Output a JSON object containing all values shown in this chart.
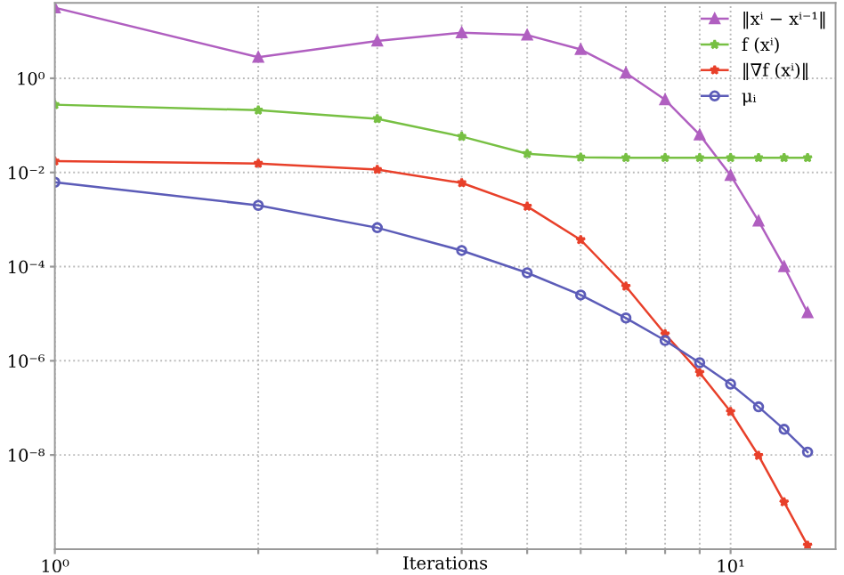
{
  "chart_data": {
    "type": "line",
    "xlabel": "Iterations",
    "log": "xy",
    "grid": true,
    "legend": "top right",
    "line_style": "solid",
    "x": [
      1,
      2,
      3,
      4,
      5,
      6,
      7,
      8,
      9,
      10,
      11,
      12,
      13
    ],
    "xlim": [
      1,
      14.3
    ],
    "ylim": [
      1e-10,
      40
    ],
    "xticks": [
      {
        "value": 1,
        "label": "10⁰"
      },
      {
        "value": 2,
        "label": null
      },
      {
        "value": 3,
        "label": null
      },
      {
        "value": 4,
        "label": null
      },
      {
        "value": 5,
        "label": null
      },
      {
        "value": 6,
        "label": null
      },
      {
        "value": 7,
        "label": null
      },
      {
        "value": 8,
        "label": null
      },
      {
        "value": 9,
        "label": null
      },
      {
        "value": 10,
        "label": "10¹"
      }
    ],
    "yticks": [
      {
        "value": 1e-08,
        "label": "10⁻⁸"
      },
      {
        "value": 1e-06,
        "label": "10⁻⁶"
      },
      {
        "value": 0.0001,
        "label": "10⁻⁴"
      },
      {
        "value": 0.01,
        "label": "10⁻²"
      },
      {
        "value": 1,
        "label": "10⁰"
      }
    ],
    "series": [
      {
        "name": "‖xⁱ − xⁱ⁻¹‖",
        "color": "#b05fc0",
        "marker": "triangle",
        "values": [
          31.6,
          2.8,
          6.2,
          9.3,
          8.3,
          4.1,
          1.3,
          0.35,
          0.063,
          0.0087,
          0.00093,
          0.0001,
          1.05e-05
        ]
      },
      {
        "name": "f (xⁱ)",
        "color": "#77c043",
        "marker": "star",
        "values": [
          0.275,
          0.21,
          0.138,
          0.058,
          0.025,
          0.021,
          0.0205,
          0.0205,
          0.0205,
          0.0205,
          0.0205,
          0.0205,
          0.0205
        ]
      },
      {
        "name": "‖∇f (xⁱ)‖",
        "color": "#e8402a",
        "marker": "star",
        "values": [
          0.0174,
          0.0155,
          0.0115,
          0.006,
          0.0019,
          0.00037,
          3.8e-05,
          3.7e-06,
          5.6e-07,
          8.3e-08,
          9.7e-09,
          1e-09,
          1.2e-10
        ]
      },
      {
        "name": "μᵢ",
        "color": "#5c5cb8",
        "marker": "circle",
        "values": [
          0.0062,
          0.002,
          0.00067,
          0.00022,
          7.4e-05,
          2.5e-05,
          8.1e-06,
          2.7e-06,
          9.1e-07,
          3.2e-07,
          1.05e-07,
          3.5e-08,
          1.15e-08
        ]
      }
    ]
  }
}
